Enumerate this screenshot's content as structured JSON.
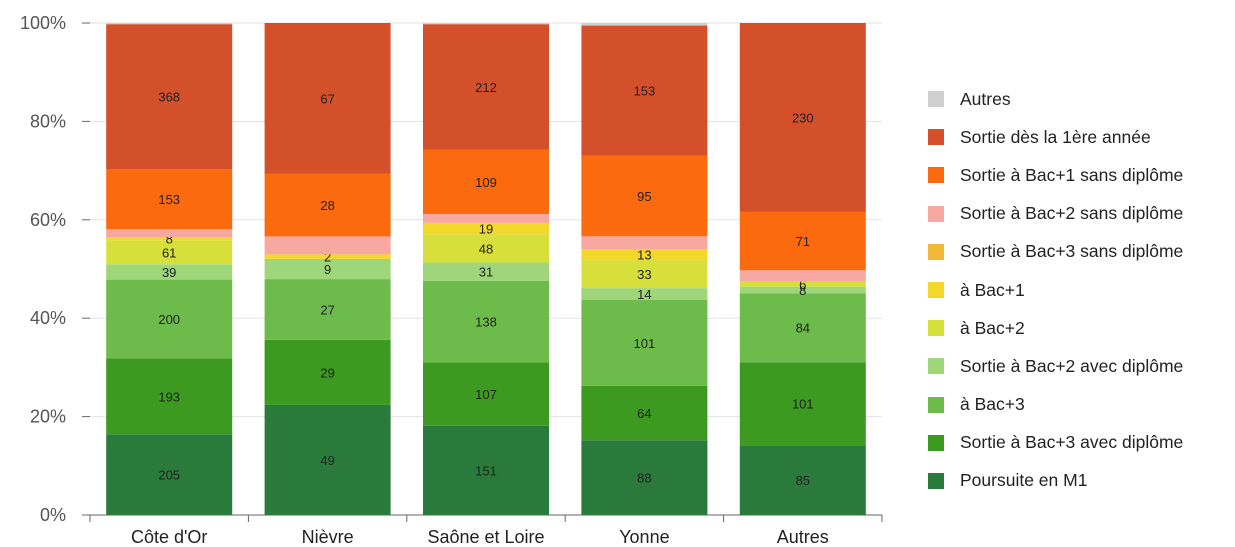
{
  "chart_data": {
    "type": "bar",
    "stacked": true,
    "normalized": true,
    "categories": [
      "Côte d'Or",
      "Nièvre",
      "Saône et Loire",
      "Yonne",
      "Autres"
    ],
    "y_ticks": [
      "0%",
      "20%",
      "40%",
      "60%",
      "80%",
      "100%"
    ],
    "ylim": [
      0,
      100
    ],
    "legend_position": "right",
    "grid": true,
    "series": [
      {
        "name": "Poursuite en M1",
        "color": "#2a7a3b",
        "values": [
          205,
          49,
          151,
          88,
          85
        ]
      },
      {
        "name": "Sortie à Bac+3 avec diplôme",
        "color": "#3b9a1f",
        "values": [
          193,
          29,
          107,
          64,
          101
        ]
      },
      {
        "name": "à Bac+3",
        "color": "#6dbb4a",
        "values": [
          200,
          27,
          138,
          101,
          84
        ]
      },
      {
        "name": "Sortie à Bac+2 avec diplôme",
        "color": "#9fd67a",
        "values": [
          39,
          9,
          31,
          14,
          8
        ]
      },
      {
        "name": "à Bac+2",
        "color": "#d7e03a",
        "values": [
          61,
          0,
          48,
          33,
          6
        ]
      },
      {
        "name": "à Bac+1",
        "color": "#f3d72a",
        "values": [
          8,
          2,
          19,
          13,
          0
        ]
      },
      {
        "name": "Sortie à Bac+3 sans diplôme",
        "color": "#f0b93a",
        "values": [
          0,
          0,
          0,
          0,
          0
        ]
      },
      {
        "name": "Sortie à Bac+2 sans diplôme",
        "color": "#f7a8a0",
        "values": [
          20,
          8,
          15,
          15,
          14
        ]
      },
      {
        "name": "Sortie à Bac+1 sans diplôme",
        "color": "#fb6a0e",
        "values": [
          153,
          28,
          109,
          95,
          71
        ]
      },
      {
        "name": "Sortie dès la 1ère année",
        "color": "#d4502b",
        "values": [
          368,
          67,
          212,
          153,
          230
        ]
      },
      {
        "name": "Autres",
        "color": "#cfcfcf",
        "values": [
          3,
          0,
          2,
          3,
          0
        ]
      }
    ],
    "data_labels": [
      {
        "series": "Poursuite en M1",
        "values": [
          "205",
          "49",
          "151",
          "88",
          "85"
        ]
      },
      {
        "series": "Sortie à Bac+3 avec diplôme",
        "values": [
          "193",
          "29",
          "107",
          "64",
          "101"
        ]
      },
      {
        "series": "à Bac+3",
        "values": [
          "200",
          "27",
          "138",
          "101",
          "84"
        ]
      },
      {
        "series": "Sortie à Bac+2 avec diplôme",
        "values": [
          "39",
          "9",
          "31",
          "14",
          "8"
        ]
      },
      {
        "series": "à Bac+2",
        "values": [
          "61",
          "",
          "48",
          "33",
          "6"
        ]
      },
      {
        "series": "à Bac+1",
        "values": [
          "8",
          "2",
          "19",
          "13",
          ""
        ]
      },
      {
        "series": "Sortie à Bac+1 sans diplôme",
        "values": [
          "153",
          "28",
          "109",
          "95",
          "71"
        ]
      },
      {
        "series": "Sortie dès la 1ère année",
        "values": [
          "368",
          "67",
          "212",
          "153",
          "230"
        ]
      }
    ],
    "legend": [
      {
        "label": "Autres",
        "color": "#cfcfcf"
      },
      {
        "label": "Sortie dès la 1ère année",
        "color": "#d4502b"
      },
      {
        "label": "Sortie à Bac+1 sans diplôme",
        "color": "#fb6a0e"
      },
      {
        "label": "Sortie à Bac+2 sans diplôme",
        "color": "#f7a8a0"
      },
      {
        "label": "Sortie à Bac+3 sans diplôme",
        "color": "#f0b93a"
      },
      {
        "label": "à Bac+1",
        "color": "#f3d72a"
      },
      {
        "label": "à Bac+2",
        "color": "#d7e03a"
      },
      {
        "label": "Sortie à Bac+2 avec diplôme",
        "color": "#9fd67a"
      },
      {
        "label": "à Bac+3",
        "color": "#6dbb4a"
      },
      {
        "label": "Sortie à Bac+3 avec diplôme",
        "color": "#3b9a1f"
      },
      {
        "label": "Poursuite en M1",
        "color": "#2a7a3b"
      }
    ]
  }
}
